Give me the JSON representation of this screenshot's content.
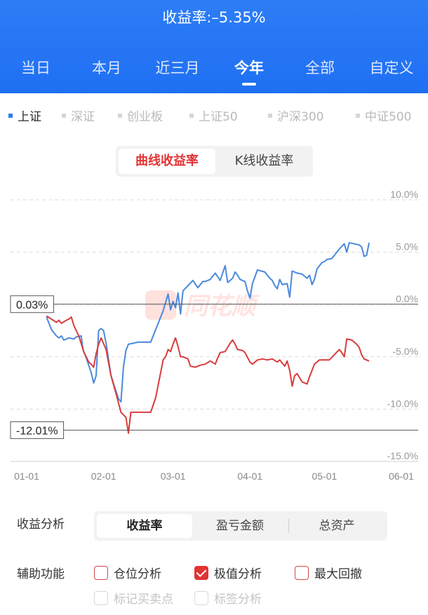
{
  "header": {
    "title": "收益率:–5.35%",
    "tabs": [
      {
        "label": "当日",
        "active": false
      },
      {
        "label": "本月",
        "active": false
      },
      {
        "label": "近三月",
        "active": false
      },
      {
        "label": "今年",
        "active": true
      },
      {
        "label": "全部",
        "active": false
      },
      {
        "label": "自定义",
        "active": false
      }
    ],
    "color": "#2d7df6"
  },
  "indices": [
    {
      "label": "上证",
      "active": true
    },
    {
      "label": "深证",
      "active": false
    },
    {
      "label": "创业板",
      "active": false
    },
    {
      "label": "上证50",
      "active": false
    },
    {
      "label": "沪深300",
      "active": false
    },
    {
      "label": "中证500",
      "active": false
    }
  ],
  "mode_toggle": {
    "options": [
      {
        "label": "曲线收益率",
        "active": true
      },
      {
        "label": "K线收益率",
        "active": false
      }
    ]
  },
  "watermark": "同花顺",
  "chart_data": {
    "type": "line",
    "y_tick_labels": [
      "10.0%",
      "5.0%",
      "0.0%",
      "-5.0%",
      "-10.0%",
      "-15.0%"
    ],
    "y_tick_values": [
      10,
      5,
      0,
      -5,
      -10,
      -15
    ],
    "ylim": [
      -15,
      10
    ],
    "x_tick_labels": [
      "01-01",
      "02-01",
      "03-01",
      "04-01",
      "05-01",
      "06-01"
    ],
    "x_tick_values": [
      0,
      31,
      59,
      90,
      120,
      151
    ],
    "xlim": [
      0,
      151
    ],
    "callouts": [
      {
        "label": "0.03%",
        "value": 0.03
      },
      {
        "label": "-12.01%",
        "value": -12.01
      }
    ],
    "series": [
      {
        "color": "#4a89dc",
        "points": [
          [
            8,
            -1.2
          ],
          [
            10,
            -2.4
          ],
          [
            12,
            -3
          ],
          [
            13,
            -3.2
          ],
          [
            14,
            -3
          ],
          [
            15,
            -3.4
          ],
          [
            17,
            -3.2
          ],
          [
            19,
            -3.3
          ],
          [
            20,
            -3.1
          ],
          [
            22,
            -3
          ],
          [
            22.5,
            -4
          ],
          [
            23,
            -4.5
          ],
          [
            24,
            -5.1
          ],
          [
            26,
            -6.5
          ],
          [
            27,
            -7.5
          ],
          [
            28,
            -6.8
          ],
          [
            29,
            -2.5
          ],
          [
            30,
            -2.3
          ],
          [
            31,
            -2.5
          ],
          [
            32,
            -3.7
          ],
          [
            34,
            -6.8
          ],
          [
            37,
            -9
          ],
          [
            38,
            -9.3
          ],
          [
            39,
            -6
          ],
          [
            40,
            -4.4
          ],
          [
            41,
            -3.8
          ],
          [
            43,
            -3.7
          ],
          [
            45,
            -3.6
          ],
          [
            47,
            -3.6
          ],
          [
            50,
            -3.6
          ],
          [
            52,
            -2.4
          ],
          [
            54,
            -1.2
          ],
          [
            55,
            -0.6
          ],
          [
            57,
            1
          ],
          [
            58,
            -0.5
          ],
          [
            59,
            0.3
          ],
          [
            60,
            -0.3
          ],
          [
            61,
            1.1
          ],
          [
            62,
            -0.9
          ],
          [
            63,
            1.3
          ],
          [
            65,
            1.8
          ],
          [
            67,
            2.3
          ],
          [
            69,
            1.6
          ],
          [
            71,
            2.2
          ],
          [
            72,
            2.2
          ],
          [
            74,
            2.4
          ],
          [
            76,
            3
          ],
          [
            78,
            2.3
          ],
          [
            80,
            3.7
          ],
          [
            81,
            2.1
          ],
          [
            83,
            2.5
          ],
          [
            84,
            3.1
          ],
          [
            85,
            2.8
          ],
          [
            86,
            2.4
          ],
          [
            88,
            2.2
          ],
          [
            89,
            1.3
          ],
          [
            90,
            0.6
          ],
          [
            91,
            2
          ],
          [
            93,
            3.3
          ],
          [
            96,
            3.1
          ],
          [
            98,
            2.5
          ],
          [
            99,
            2.3
          ],
          [
            100,
            1.8
          ],
          [
            101,
            1.5
          ],
          [
            102,
            2.4
          ],
          [
            103,
            1.9
          ],
          [
            105,
            2
          ],
          [
            106,
            0.7
          ],
          [
            107,
            3.2
          ],
          [
            109,
            3
          ],
          [
            111,
            2.9
          ],
          [
            113,
            2.5
          ],
          [
            114,
            2.8
          ],
          [
            115,
            1.9
          ],
          [
            116,
            2.4
          ],
          [
            117,
            3.4
          ],
          [
            119,
            4
          ],
          [
            120,
            4.1
          ],
          [
            121,
            4.3
          ],
          [
            123,
            4.4
          ],
          [
            125,
            5
          ],
          [
            126,
            5.3
          ],
          [
            128,
            5.8
          ],
          [
            129,
            5
          ],
          [
            130,
            5.9
          ],
          [
            132,
            5.8
          ],
          [
            134,
            5.7
          ],
          [
            135,
            5.5
          ],
          [
            136,
            4.6
          ],
          [
            137,
            4.7
          ],
          [
            138,
            5.9
          ]
        ]
      },
      {
        "color": "#d93c3c",
        "points": [
          [
            8,
            -1.1
          ],
          [
            10,
            -1.4
          ],
          [
            12,
            -1.7
          ],
          [
            13,
            -1.5
          ],
          [
            14,
            -1.8
          ],
          [
            16,
            -1.5
          ],
          [
            17,
            -1.4
          ],
          [
            18,
            -1.2
          ],
          [
            19,
            -2
          ],
          [
            21,
            -3
          ],
          [
            23,
            -4.5
          ],
          [
            25,
            -5.5
          ],
          [
            26,
            -5.7
          ],
          [
            27,
            -6
          ],
          [
            28,
            -4.7
          ],
          [
            29,
            -3.8
          ],
          [
            30,
            -3.2
          ],
          [
            32,
            -4.3
          ],
          [
            34,
            -6.8
          ],
          [
            36,
            -8.5
          ],
          [
            38,
            -10.3
          ],
          [
            40,
            -10.8
          ],
          [
            41,
            -12.3
          ],
          [
            42,
            -10.3
          ],
          [
            45,
            -10.3
          ],
          [
            50,
            -10.3
          ],
          [
            52,
            -8.9
          ],
          [
            54,
            -6.5
          ],
          [
            55,
            -5.3
          ],
          [
            56,
            -5
          ],
          [
            57,
            -4.3
          ],
          [
            58,
            -4.5
          ],
          [
            59,
            -3.8
          ],
          [
            60,
            -3.2
          ],
          [
            61,
            -4
          ],
          [
            62,
            -5
          ],
          [
            63,
            -5
          ],
          [
            65,
            -5.2
          ],
          [
            66,
            -5.9
          ],
          [
            68,
            -6
          ],
          [
            70,
            -5.8
          ],
          [
            72,
            -5.7
          ],
          [
            74,
            -5.4
          ],
          [
            76,
            -5.7
          ],
          [
            77,
            -5.1
          ],
          [
            78,
            -4.6
          ],
          [
            80,
            -4.5
          ],
          [
            82,
            -3.7
          ],
          [
            83,
            -3.4
          ],
          [
            84,
            -3.8
          ],
          [
            85,
            -4.3
          ],
          [
            87,
            -4.4
          ],
          [
            88,
            -4.6
          ],
          [
            90,
            -5.5
          ],
          [
            91,
            -5.7
          ],
          [
            93,
            -5.3
          ],
          [
            95,
            -5.2
          ],
          [
            97,
            -5.3
          ],
          [
            99,
            -5.2
          ],
          [
            101,
            -5.5
          ],
          [
            102,
            -5.3
          ],
          [
            103,
            -5.6
          ],
          [
            104,
            -5.9
          ],
          [
            105,
            -5.4
          ],
          [
            106,
            -6.3
          ],
          [
            107,
            -7.8
          ],
          [
            108,
            -6.8
          ],
          [
            109,
            -6.6
          ],
          [
            111,
            -7.4
          ],
          [
            113,
            -7.6
          ],
          [
            114,
            -6.9
          ],
          [
            116,
            -5.7
          ],
          [
            118,
            -5.3
          ],
          [
            120,
            -5.3
          ],
          [
            122,
            -5.3
          ],
          [
            124,
            -4.8
          ],
          [
            126,
            -4.3
          ],
          [
            127,
            -4.6
          ],
          [
            128,
            -5
          ],
          [
            129,
            -3.3
          ],
          [
            131,
            -3.4
          ],
          [
            133,
            -3.8
          ],
          [
            134,
            -4.1
          ],
          [
            135,
            -4.8
          ],
          [
            136,
            -5.2
          ],
          [
            137,
            -5.3
          ],
          [
            138,
            -5.4
          ]
        ]
      }
    ]
  },
  "analysis": {
    "label": "收益分析",
    "options": [
      {
        "label": "收益率",
        "active": true
      },
      {
        "label": "盈亏金额",
        "active": false
      },
      {
        "label": "总资产",
        "active": false
      }
    ]
  },
  "aux": {
    "label": "辅助功能",
    "options": [
      {
        "label": "仓位分析",
        "checked": false,
        "disabled": false
      },
      {
        "label": "极值分析",
        "checked": true,
        "disabled": false
      },
      {
        "label": "最大回撤",
        "checked": false,
        "disabled": false
      },
      {
        "label": "标记买卖点",
        "checked": false,
        "disabled": true
      },
      {
        "label": "标签分析",
        "checked": false,
        "disabled": true
      }
    ]
  }
}
